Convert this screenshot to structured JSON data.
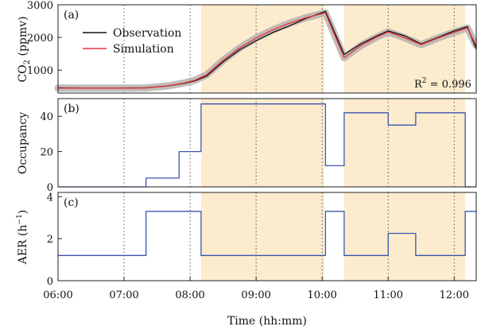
{
  "chart_data": {
    "type": "line",
    "xlabel": "Time (hh:mm)",
    "x_ticks": [
      "06:00",
      "07:00",
      "08:00",
      "09:00",
      "10:00",
      "11:00",
      "12:00"
    ],
    "xlim": [
      "06:00",
      "12:20"
    ],
    "vertical_markers": [
      "07:00",
      "08:00",
      "09:00",
      "10:00",
      "11:00",
      "12:00"
    ],
    "shaded_intervals": [
      [
        "08:10",
        "10:02"
      ],
      [
        "10:20",
        "12:10"
      ]
    ],
    "shade_color": "#fcebcd",
    "panels": [
      {
        "label": "(a)",
        "ylabel_main": "CO",
        "ylabel_sub": "2",
        "ylabel_tail": " (ppmv)",
        "ylim": [
          300,
          3000
        ],
        "yticks": [
          "1000",
          "2000",
          "3000"
        ],
        "annotation": {
          "prefix": "R",
          "sup": "2",
          "rest": " = 0.996"
        },
        "legend": [
          {
            "name": "Observation",
            "color": "#111111"
          },
          {
            "name": "Simulation",
            "color": "#e8323c"
          }
        ],
        "band_color": "#b5b2ae",
        "series": [
          {
            "name": "Observation",
            "color": "#111111",
            "points": [
              [
                "06:00",
                460
              ],
              [
                "06:30",
                450
              ],
              [
                "07:00",
                455
              ],
              [
                "07:20",
                460
              ],
              [
                "07:40",
                520
              ],
              [
                "07:55",
                600
              ],
              [
                "08:05",
                680
              ],
              [
                "08:15",
                820
              ],
              [
                "08:30",
                1250
              ],
              [
                "08:45",
                1620
              ],
              [
                "09:00",
                1900
              ],
              [
                "09:15",
                2150
              ],
              [
                "09:30",
                2350
              ],
              [
                "09:45",
                2580
              ],
              [
                "10:00",
                2760
              ],
              [
                "10:03",
                2800
              ],
              [
                "10:20",
                1480
              ],
              [
                "10:35",
                1800
              ],
              [
                "10:50",
                2050
              ],
              [
                "11:00",
                2200
              ],
              [
                "11:15",
                2050
              ],
              [
                "11:30",
                1800
              ],
              [
                "11:45",
                2000
              ],
              [
                "12:00",
                2200
              ],
              [
                "12:12",
                2330
              ],
              [
                "12:20",
                1650
              ]
            ]
          },
          {
            "name": "Simulation",
            "color": "#e8323c",
            "points": [
              [
                "06:00",
                450
              ],
              [
                "06:30",
                450
              ],
              [
                "07:00",
                450
              ],
              [
                "07:20",
                455
              ],
              [
                "07:40",
                520
              ],
              [
                "07:55",
                610
              ],
              [
                "08:05",
                700
              ],
              [
                "08:15",
                860
              ],
              [
                "08:30",
                1300
              ],
              [
                "08:45",
                1680
              ],
              [
                "09:00",
                1980
              ],
              [
                "09:15",
                2230
              ],
              [
                "09:30",
                2430
              ],
              [
                "09:45",
                2600
              ],
              [
                "10:00",
                2730
              ],
              [
                "10:03",
                2750
              ],
              [
                "10:20",
                1380
              ],
              [
                "10:35",
                1750
              ],
              [
                "10:50",
                2020
              ],
              [
                "11:00",
                2170
              ],
              [
                "11:15",
                1990
              ],
              [
                "11:30",
                1780
              ],
              [
                "11:45",
                1980
              ],
              [
                "12:00",
                2160
              ],
              [
                "12:12",
                2290
              ],
              [
                "12:20",
                1750
              ]
            ]
          }
        ]
      },
      {
        "label": "(b)",
        "ylabel": "Occupancy",
        "ylim": [
          0,
          50
        ],
        "yticks": [
          "0",
          "20",
          "40"
        ],
        "series": [
          {
            "name": "Occupancy",
            "color": "#3a56b0",
            "step": [
              [
                "06:00",
                0
              ],
              [
                "07:20",
                5
              ],
              [
                "07:50",
                20
              ],
              [
                "08:10",
                47
              ],
              [
                "10:03",
                12
              ],
              [
                "10:20",
                42
              ],
              [
                "11:00",
                35
              ],
              [
                "11:25",
                42
              ],
              [
                "12:10",
                0
              ]
            ]
          }
        ]
      },
      {
        "label": "(c)",
        "ylabel_main": "AER (h",
        "ylabel_sup": "−1",
        "ylabel_tail": ")",
        "ylim": [
          0,
          4.2
        ],
        "yticks": [
          "0",
          "2",
          "4"
        ],
        "series": [
          {
            "name": "AER",
            "color": "#3a56b0",
            "step": [
              [
                "06:00",
                1.2
              ],
              [
                "07:20",
                3.3
              ],
              [
                "08:10",
                1.2
              ],
              [
                "10:03",
                3.3
              ],
              [
                "10:20",
                1.2
              ],
              [
                "11:00",
                2.25
              ],
              [
                "11:25",
                1.2
              ],
              [
                "12:10",
                3.3
              ]
            ]
          }
        ]
      }
    ]
  }
}
